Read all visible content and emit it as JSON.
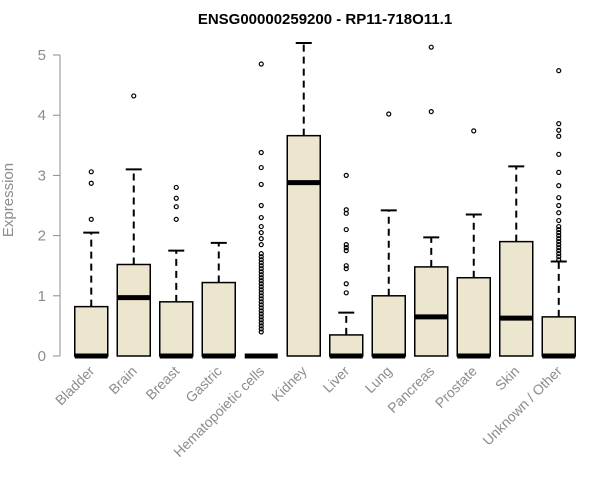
{
  "chart_data": {
    "type": "box",
    "title": "ENSG00000259200 - RP11-718O11.1",
    "xlabel": "",
    "ylabel": "Expression",
    "ylim": [
      0,
      5.2
    ],
    "yticks": [
      0,
      1,
      2,
      3,
      4,
      5
    ],
    "grid": false,
    "legend": "none",
    "colors": {
      "box_fill": "#ede6cf",
      "box_stroke": "#000000",
      "median": "#000000",
      "axis": "#8c8c8c"
    },
    "categories": [
      "Bladder",
      "Brain",
      "Breast",
      "Gastric",
      "Hematopoietic cells",
      "Kidney",
      "Liver",
      "Lung",
      "Pancreas",
      "Prostate",
      "Skin",
      "Unknown / Other"
    ],
    "series": [
      {
        "category": "Bladder",
        "min": 0,
        "q1": 0,
        "median": 0,
        "q3": 0.82,
        "max": 2.05,
        "outliers": [
          2.27,
          2.87,
          3.06
        ]
      },
      {
        "category": "Brain",
        "min": 0,
        "q1": 0,
        "median": 0.97,
        "q3": 1.52,
        "max": 3.1,
        "outliers": [
          4.32
        ]
      },
      {
        "category": "Breast",
        "min": 0,
        "q1": 0,
        "median": 0,
        "q3": 0.9,
        "max": 1.75,
        "outliers": [
          2.27,
          2.48,
          2.62,
          2.8
        ]
      },
      {
        "category": "Gastric",
        "min": 0,
        "q1": 0,
        "median": 0,
        "q3": 1.22,
        "max": 1.88,
        "outliers": []
      },
      {
        "category": "Hematopoietic cells",
        "min": 0,
        "q1": 0,
        "median": 0,
        "q3": 0,
        "max": 0,
        "outliers": [
          0.4,
          0.45,
          0.5,
          0.55,
          0.6,
          0.65,
          0.7,
          0.75,
          0.8,
          0.85,
          0.9,
          0.95,
          1.0,
          1.05,
          1.1,
          1.15,
          1.2,
          1.25,
          1.3,
          1.35,
          1.4,
          1.45,
          1.5,
          1.55,
          1.6,
          1.65,
          1.7,
          1.85,
          1.95,
          2.05,
          2.15,
          2.3,
          2.5,
          2.85,
          3.13,
          3.38,
          4.85
        ]
      },
      {
        "category": "Kidney",
        "min": 0,
        "q1": 0,
        "median": 2.88,
        "q3": 3.66,
        "max": 5.2,
        "outliers": []
      },
      {
        "category": "Liver",
        "min": 0,
        "q1": 0,
        "median": 0,
        "q3": 0.35,
        "max": 0.72,
        "outliers": [
          1.05,
          1.2,
          1.45,
          1.5,
          1.75,
          1.8,
          1.85,
          2.1,
          2.37,
          2.43,
          3.0
        ]
      },
      {
        "category": "Lung",
        "min": 0,
        "q1": 0,
        "median": 0,
        "q3": 1.0,
        "max": 2.42,
        "outliers": [
          4.02
        ]
      },
      {
        "category": "Pancreas",
        "min": 0,
        "q1": 0,
        "median": 0.65,
        "q3": 1.48,
        "max": 1.97,
        "outliers": [
          4.06,
          5.13
        ]
      },
      {
        "category": "Prostate",
        "min": 0,
        "q1": 0,
        "median": 0,
        "q3": 1.3,
        "max": 2.35,
        "outliers": [
          3.74
        ]
      },
      {
        "category": "Skin",
        "min": 0,
        "q1": 0,
        "median": 0.63,
        "q3": 1.9,
        "max": 3.15,
        "outliers": []
      },
      {
        "category": "Unknown / Other",
        "min": 0,
        "q1": 0,
        "median": 0,
        "q3": 0.65,
        "max": 1.57,
        "outliers": [
          1.6,
          1.65,
          1.7,
          1.75,
          1.8,
          1.85,
          1.9,
          1.95,
          2.0,
          2.05,
          2.1,
          2.15,
          2.25,
          2.38,
          2.5,
          2.63,
          2.83,
          3.05,
          3.35,
          3.65,
          3.75,
          3.86,
          4.74
        ]
      }
    ]
  }
}
